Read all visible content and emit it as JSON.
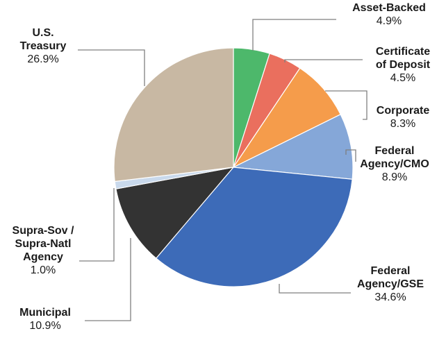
{
  "chart_data": {
    "type": "pie",
    "title": "",
    "start_angle_deg": 0,
    "direction": "clockwise",
    "slices": [
      {
        "label": "Asset-Backed",
        "name_lines": [
          "Asset-Backed"
        ],
        "value": 4.9,
        "value_label": "4.9%",
        "color": "#4db86b"
      },
      {
        "label": "Certificate of Deposit",
        "name_lines": [
          "Certificate",
          "of Deposit"
        ],
        "value": 4.5,
        "value_label": "4.5%",
        "color": "#ea6f5e"
      },
      {
        "label": "Corporate",
        "name_lines": [
          "Corporate"
        ],
        "value": 8.3,
        "value_label": "8.3%",
        "color": "#f59c4b"
      },
      {
        "label": "Federal Agency/CMO",
        "name_lines": [
          "Federal",
          "Agency/CMO"
        ],
        "value": 8.9,
        "value_label": "8.9%",
        "color": "#85a7d8"
      },
      {
        "label": "Federal Agency/GSE",
        "name_lines": [
          "Federal",
          "Agency/GSE"
        ],
        "value": 34.6,
        "value_label": "34.6%",
        "color": "#3d6bb8"
      },
      {
        "label": "Municipal",
        "name_lines": [
          "Municipal"
        ],
        "value": 10.9,
        "value_label": "10.9%",
        "color": "#333333"
      },
      {
        "label": "Supra-Sov / Supra-Natl Agency",
        "name_lines": [
          "Supra-Sov /",
          "Supra-Natl",
          "Agency"
        ],
        "value": 1.0,
        "value_label": "1.0%",
        "color": "#c9d9ec"
      },
      {
        "label": "U.S. Treasury",
        "name_lines": [
          "U.S.",
          "Treasury"
        ],
        "value": 26.9,
        "value_label": "26.9%",
        "color": "#c8b8a3"
      }
    ]
  }
}
